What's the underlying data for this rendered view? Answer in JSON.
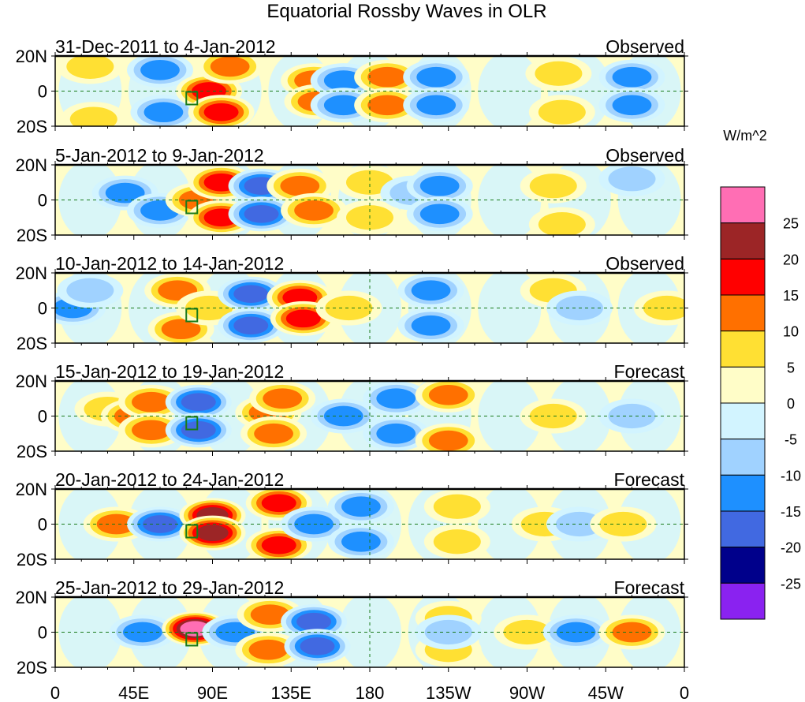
{
  "chart_data": {
    "type": "heatmap",
    "title": "Equatorial Rossby Waves in OLR",
    "units_label": "W/m^2",
    "x_ticks": [
      "0",
      "45E",
      "90E",
      "135E",
      "180",
      "135W",
      "90W",
      "45W",
      "0"
    ],
    "x_tick_lon": [
      0,
      45,
      90,
      135,
      180,
      225,
      270,
      315,
      360
    ],
    "y_ticks": [
      "20N",
      "0",
      "20S"
    ],
    "y_tick_lat": [
      20,
      0,
      -20
    ],
    "xlim": [
      0,
      360
    ],
    "ylim": [
      -20,
      20
    ],
    "colorbar": {
      "levels": [
        -25,
        -20,
        -15,
        -10,
        -5,
        0,
        5,
        10,
        15,
        20,
        25
      ],
      "labels": [
        "25",
        "20",
        "15",
        "10",
        "5",
        "0",
        "-5",
        "-10",
        "-15",
        "-20",
        "-25"
      ],
      "colors": [
        "#ff6eb4",
        "#9c2526",
        "#ff0000",
        "#ff7000",
        "#ffe033",
        "#fffdc8",
        "#d2f4ff",
        "#a0d2ff",
        "#1e90ff",
        "#4169e1",
        "#00008b",
        "#8a22f0"
      ]
    },
    "panels": [
      {
        "period": "31-Dec-2011 to 4-Jan-2012",
        "status": "Observed",
        "anomalies": [
          {
            "lon": 60,
            "lat": 12,
            "v": -14
          },
          {
            "lon": 62,
            "lat": -12,
            "v": -14
          },
          {
            "lon": 88,
            "lat": 0,
            "v": 17
          },
          {
            "lon": 100,
            "lat": 14,
            "v": 14
          },
          {
            "lon": 95,
            "lat": -12,
            "v": 18
          },
          {
            "lon": 20,
            "lat": 14,
            "v": 10
          },
          {
            "lon": 22,
            "lat": -16,
            "v": 10
          },
          {
            "lon": 148,
            "lat": 6,
            "v": 13
          },
          {
            "lon": 150,
            "lat": -6,
            "v": 12
          },
          {
            "lon": 165,
            "lat": 6,
            "v": -12
          },
          {
            "lon": 165,
            "lat": -8,
            "v": -12
          },
          {
            "lon": 190,
            "lat": 8,
            "v": 11
          },
          {
            "lon": 190,
            "lat": -8,
            "v": 11
          },
          {
            "lon": 218,
            "lat": 8,
            "v": -11
          },
          {
            "lon": 218,
            "lat": -8,
            "v": -11
          },
          {
            "lon": 288,
            "lat": 10,
            "v": 7
          },
          {
            "lon": 290,
            "lat": -12,
            "v": 7
          },
          {
            "lon": 330,
            "lat": 8,
            "v": -11
          },
          {
            "lon": 330,
            "lat": -8,
            "v": -11
          }
        ]
      },
      {
        "period": "5-Jan-2012 to 9-Jan-2012",
        "status": "Observed",
        "anomalies": [
          {
            "lon": 40,
            "lat": 4,
            "v": -11
          },
          {
            "lon": 60,
            "lat": -6,
            "v": -11
          },
          {
            "lon": 82,
            "lat": 0,
            "v": 14
          },
          {
            "lon": 95,
            "lat": 10,
            "v": 17
          },
          {
            "lon": 95,
            "lat": -10,
            "v": 18
          },
          {
            "lon": 118,
            "lat": 8,
            "v": -19
          },
          {
            "lon": 118,
            "lat": -8,
            "v": -17
          },
          {
            "lon": 140,
            "lat": 8,
            "v": 15
          },
          {
            "lon": 148,
            "lat": -6,
            "v": 14
          },
          {
            "lon": 180,
            "lat": 10,
            "v": 10
          },
          {
            "lon": 180,
            "lat": -10,
            "v": 10
          },
          {
            "lon": 205,
            "lat": 4,
            "v": -8
          },
          {
            "lon": 220,
            "lat": 8,
            "v": -11
          },
          {
            "lon": 220,
            "lat": -8,
            "v": -11
          },
          {
            "lon": 285,
            "lat": 8,
            "v": 7
          },
          {
            "lon": 290,
            "lat": -14,
            "v": 7
          },
          {
            "lon": 330,
            "lat": 12,
            "v": -8
          }
        ]
      },
      {
        "period": "10-Jan-2012 to 14-Jan-2012",
        "status": "Observed",
        "anomalies": [
          {
            "lon": 10,
            "lat": 0,
            "v": -12
          },
          {
            "lon": 20,
            "lat": 10,
            "v": -8
          },
          {
            "lon": 70,
            "lat": 10,
            "v": 12
          },
          {
            "lon": 72,
            "lat": -12,
            "v": 12
          },
          {
            "lon": 88,
            "lat": 0,
            "v": 7
          },
          {
            "lon": 112,
            "lat": 8,
            "v": -19
          },
          {
            "lon": 112,
            "lat": -10,
            "v": -19
          },
          {
            "lon": 140,
            "lat": 6,
            "v": 16
          },
          {
            "lon": 142,
            "lat": -6,
            "v": 16
          },
          {
            "lon": 168,
            "lat": 0,
            "v": 6
          },
          {
            "lon": 215,
            "lat": 10,
            "v": -14
          },
          {
            "lon": 215,
            "lat": -10,
            "v": -14
          },
          {
            "lon": 285,
            "lat": 10,
            "v": 7
          },
          {
            "lon": 300,
            "lat": 0,
            "v": -7
          },
          {
            "lon": 350,
            "lat": 0,
            "v": 6
          }
        ]
      },
      {
        "period": "15-Jan-2012 to 19-Jan-2012",
        "status": "Forecast",
        "anomalies": [
          {
            "lon": 30,
            "lat": 4,
            "v": 8
          },
          {
            "lon": 45,
            "lat": 0,
            "v": 12
          },
          {
            "lon": 55,
            "lat": 8,
            "v": 11
          },
          {
            "lon": 55,
            "lat": -8,
            "v": 11
          },
          {
            "lon": 82,
            "lat": 8,
            "v": -16
          },
          {
            "lon": 82,
            "lat": -8,
            "v": -16
          },
          {
            "lon": 122,
            "lat": 2,
            "v": 12
          },
          {
            "lon": 130,
            "lat": 10,
            "v": 15
          },
          {
            "lon": 125,
            "lat": -10,
            "v": 15
          },
          {
            "lon": 165,
            "lat": 0,
            "v": -12
          },
          {
            "lon": 195,
            "lat": 10,
            "v": -14
          },
          {
            "lon": 195,
            "lat": -10,
            "v": -14
          },
          {
            "lon": 225,
            "lat": 12,
            "v": 11
          },
          {
            "lon": 225,
            "lat": -14,
            "v": 11
          },
          {
            "lon": 285,
            "lat": 0,
            "v": 7
          },
          {
            "lon": 330,
            "lat": 0,
            "v": -6
          }
        ]
      },
      {
        "period": "20-Jan-2012 to 24-Jan-2012",
        "status": "Forecast",
        "anomalies": [
          {
            "lon": 35,
            "lat": 0,
            "v": 11
          },
          {
            "lon": 60,
            "lat": 0,
            "v": -19
          },
          {
            "lon": 90,
            "lat": 5,
            "v": 21
          },
          {
            "lon": 90,
            "lat": -5,
            "v": 21
          },
          {
            "lon": 128,
            "lat": 12,
            "v": 19
          },
          {
            "lon": 128,
            "lat": -12,
            "v": 19
          },
          {
            "lon": 148,
            "lat": 0,
            "v": -13
          },
          {
            "lon": 175,
            "lat": 10,
            "v": -13
          },
          {
            "lon": 175,
            "lat": -10,
            "v": -13
          },
          {
            "lon": 230,
            "lat": 10,
            "v": 7
          },
          {
            "lon": 230,
            "lat": -10,
            "v": 7
          },
          {
            "lon": 280,
            "lat": 0,
            "v": 7
          },
          {
            "lon": 300,
            "lat": 0,
            "v": -8
          },
          {
            "lon": 325,
            "lat": 0,
            "v": 7
          }
        ]
      },
      {
        "period": "25-Jan-2012 to 29-Jan-2012",
        "status": "Forecast",
        "anomalies": [
          {
            "lon": 50,
            "lat": 0,
            "v": -13
          },
          {
            "lon": 80,
            "lat": 2,
            "v": 27
          },
          {
            "lon": 103,
            "lat": 0,
            "v": -12
          },
          {
            "lon": 123,
            "lat": 10,
            "v": 13
          },
          {
            "lon": 122,
            "lat": -10,
            "v": 13
          },
          {
            "lon": 148,
            "lat": 6,
            "v": -16
          },
          {
            "lon": 150,
            "lat": -8,
            "v": -16
          },
          {
            "lon": 225,
            "lat": 8,
            "v": 7
          },
          {
            "lon": 225,
            "lat": -10,
            "v": 7
          },
          {
            "lon": 225,
            "lat": 0,
            "v": -6
          },
          {
            "lon": 270,
            "lat": 0,
            "v": 7
          },
          {
            "lon": 298,
            "lat": 0,
            "v": -14
          },
          {
            "lon": 330,
            "lat": 0,
            "v": 12
          }
        ]
      }
    ]
  }
}
